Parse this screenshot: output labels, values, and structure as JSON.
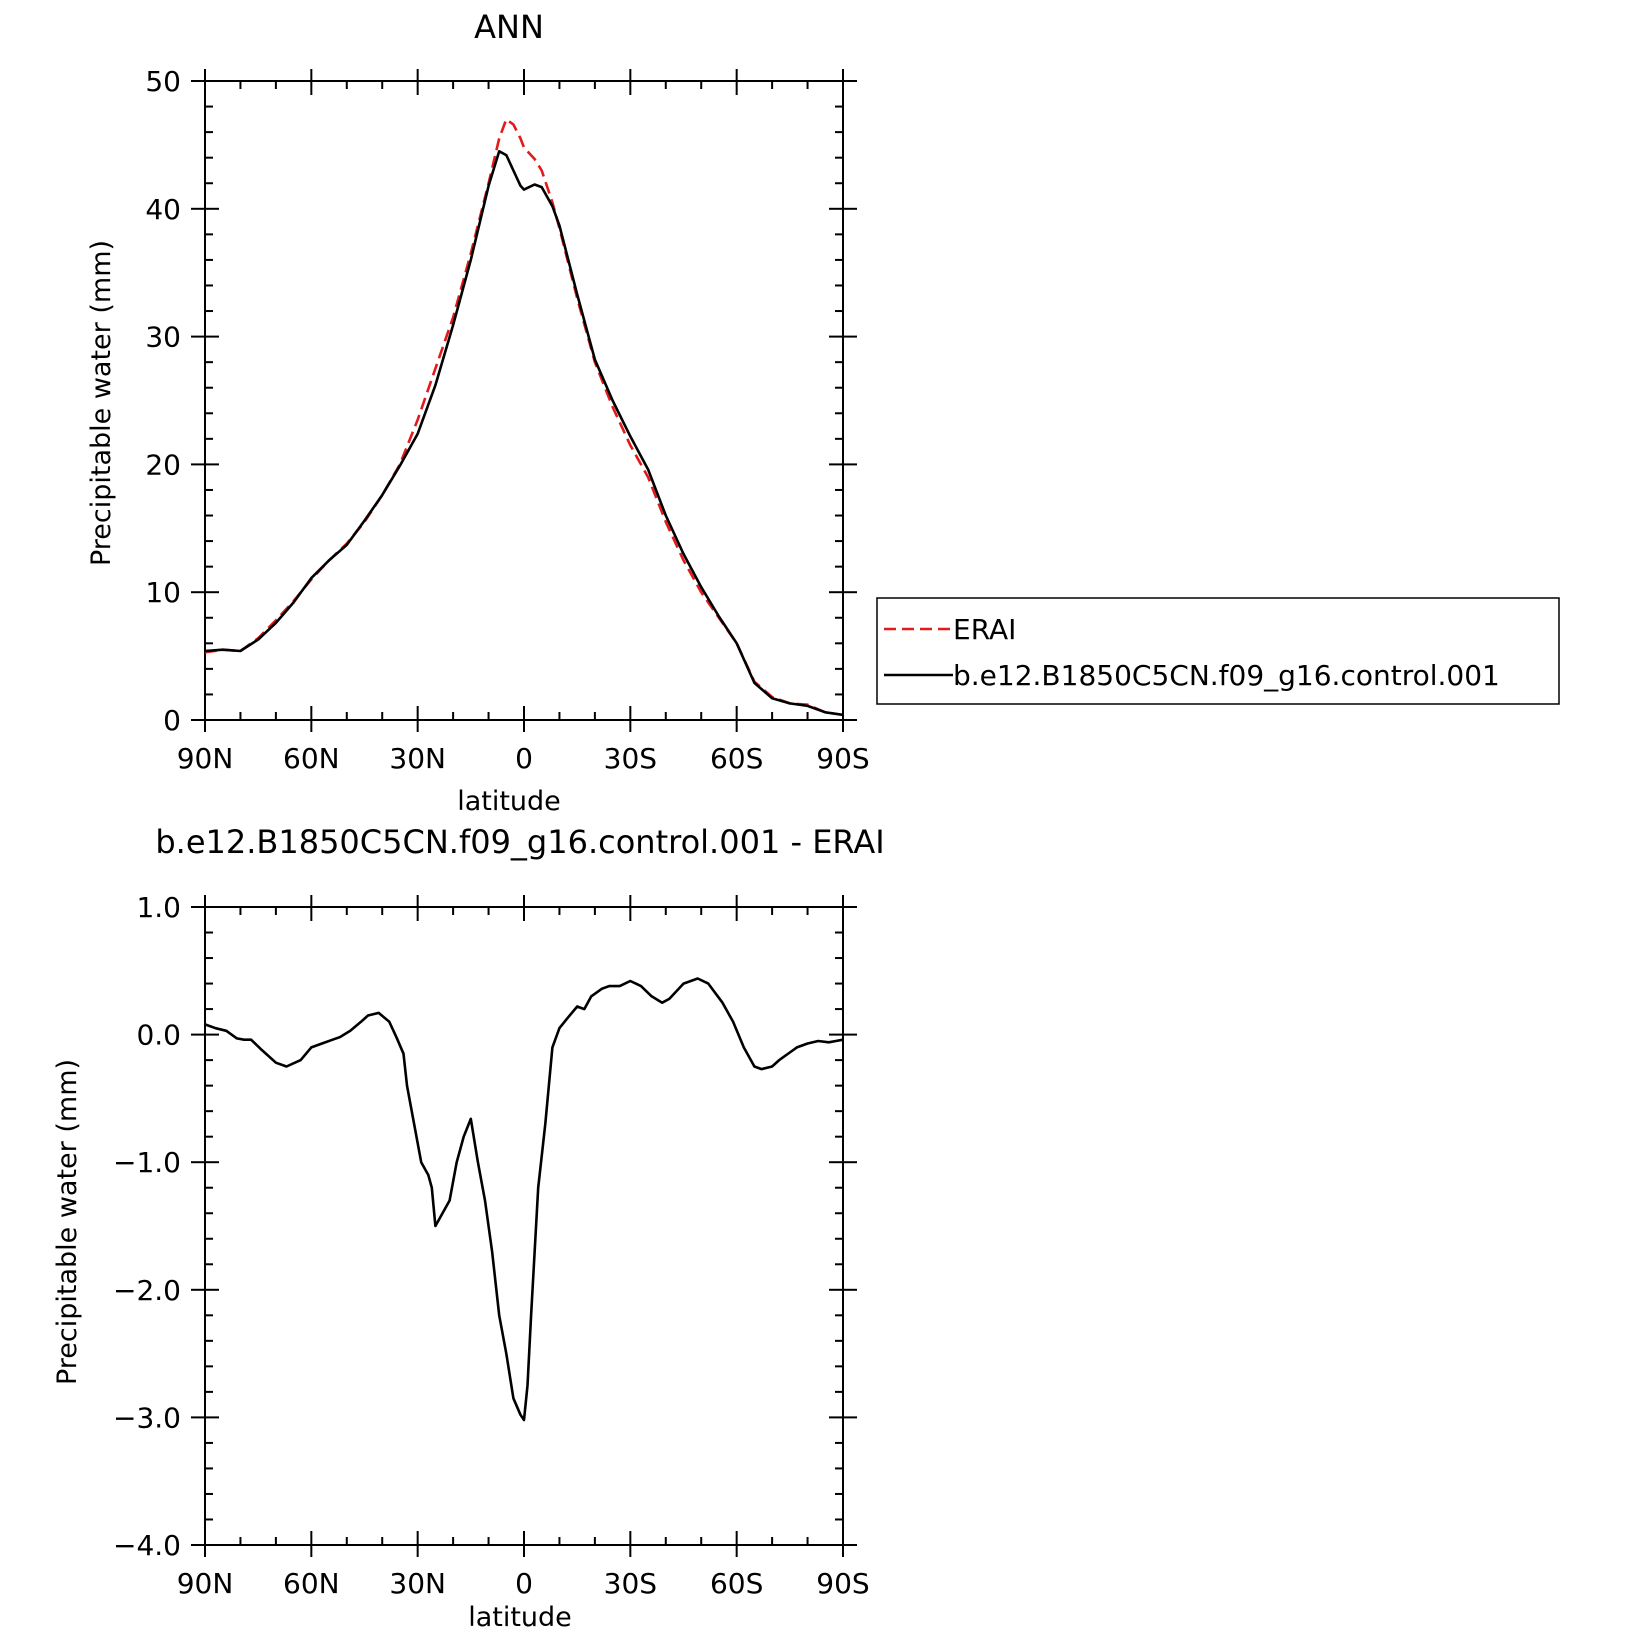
{
  "chart_data": [
    {
      "type": "line",
      "title": "ANN",
      "xlabel": "latitude",
      "ylabel": "Precipitable water (mm)",
      "xlim": [
        90,
        -90
      ],
      "ylim": [
        0,
        50
      ],
      "xticks": [
        90,
        60,
        30,
        0,
        -30,
        -60,
        -90
      ],
      "xtick_labels": [
        "90N",
        "60N",
        "30N",
        "0",
        "30S",
        "60S",
        "90S"
      ],
      "yticks": [
        0,
        10,
        20,
        30,
        40,
        50
      ],
      "ytick_labels": [
        "0",
        "10",
        "20",
        "30",
        "40",
        "50"
      ],
      "grid": false,
      "legend_position": "right",
      "series": [
        {
          "name": "ERAI",
          "color": "#e31a1c",
          "style": "dashed",
          "x": [
            90,
            85,
            80,
            75,
            70,
            65,
            60,
            55,
            50,
            45,
            40,
            35,
            30,
            25,
            20,
            15,
            10,
            7,
            5,
            3,
            1,
            0,
            -3,
            -5,
            -8,
            -10,
            -15,
            -20,
            -25,
            -30,
            -35,
            -40,
            -45,
            -50,
            -55,
            -60,
            -65,
            -70,
            -75,
            -80,
            -85,
            -90
          ],
          "y": [
            5.3,
            5.5,
            5.4,
            6.4,
            7.8,
            9.3,
            11.0,
            12.5,
            13.8,
            15.5,
            17.6,
            20.0,
            23.5,
            27.5,
            31.5,
            36.5,
            42.0,
            45.5,
            47.0,
            46.6,
            45.5,
            44.8,
            43.9,
            43.0,
            40.5,
            38.5,
            33.0,
            28.0,
            24.5,
            21.5,
            19.0,
            15.5,
            12.5,
            10.0,
            8.0,
            6.0,
            3.0,
            1.8,
            1.3,
            1.2,
            0.6,
            0.4
          ]
        },
        {
          "name": "b.e12.B1850C5CN.f09_g16.control.001",
          "color": "#000000",
          "style": "solid",
          "x": [
            90,
            85,
            80,
            75,
            70,
            65,
            60,
            55,
            50,
            45,
            40,
            35,
            30,
            25,
            20,
            15,
            10,
            7,
            5,
            3,
            1,
            0,
            -3,
            -5,
            -8,
            -10,
            -15,
            -20,
            -25,
            -30,
            -35,
            -40,
            -45,
            -50,
            -55,
            -60,
            -65,
            -70,
            -75,
            -80,
            -85,
            -90
          ],
          "y": [
            5.4,
            5.5,
            5.4,
            6.3,
            7.6,
            9.2,
            11.1,
            12.5,
            13.7,
            15.6,
            17.6,
            19.9,
            22.4,
            26.2,
            30.9,
            36.0,
            41.8,
            44.5,
            44.2,
            43.0,
            41.8,
            41.5,
            41.9,
            41.7,
            40.2,
            38.7,
            33.3,
            28.2,
            25.0,
            22.2,
            19.6,
            16.0,
            13.0,
            10.4,
            8.1,
            6.0,
            2.9,
            1.7,
            1.3,
            1.1,
            0.6,
            0.4
          ]
        }
      ]
    },
    {
      "type": "line",
      "title": "b.e12.B1850C5CN.f09_g16.control.001 - ERAI",
      "xlabel": "latitude",
      "ylabel": "Precipitable water (mm)",
      "xlim": [
        90,
        -90
      ],
      "ylim": [
        -4.0,
        1.0
      ],
      "xticks": [
        90,
        60,
        30,
        0,
        -30,
        -60,
        -90
      ],
      "xtick_labels": [
        "90N",
        "60N",
        "30N",
        "0",
        "30S",
        "60S",
        "90S"
      ],
      "yticks": [
        1.0,
        0.0,
        -1.0,
        -2.0,
        -3.0,
        -4.0
      ],
      "ytick_labels": [
        "1.0",
        "0.0",
        "−1.0",
        "−2.0",
        "−3.0",
        "−4.0"
      ],
      "grid": false,
      "series": [
        {
          "color": "#000000",
          "style": "solid",
          "x": [
            90,
            87,
            84,
            81,
            79,
            77,
            74,
            70,
            67,
            63,
            60,
            57,
            54,
            52,
            49,
            46,
            44,
            41,
            38,
            36,
            34,
            33,
            31,
            29,
            27,
            26,
            25,
            23,
            21,
            19,
            17,
            15,
            13,
            11,
            9,
            7,
            5,
            3,
            1,
            0,
            -1,
            -2,
            -4,
            -6,
            -8,
            -10,
            -12,
            -15,
            -17,
            -19,
            -22,
            -24,
            -27,
            -30,
            -33,
            -36,
            -39,
            -41,
            -45,
            -49,
            -52,
            -56,
            -59,
            -62,
            -65,
            -67,
            -70,
            -72,
            -75,
            -77,
            -80,
            -83,
            -86,
            -88,
            -90
          ],
          "y": [
            0.08,
            0.05,
            0.03,
            -0.03,
            -0.04,
            -0.04,
            -0.12,
            -0.22,
            -0.25,
            -0.2,
            -0.1,
            -0.07,
            -0.04,
            -0.02,
            0.03,
            0.1,
            0.15,
            0.17,
            0.1,
            -0.02,
            -0.15,
            -0.4,
            -0.7,
            -1.0,
            -1.1,
            -1.2,
            -1.5,
            -1.4,
            -1.3,
            -1.0,
            -0.8,
            -0.66,
            -1.0,
            -1.3,
            -1.7,
            -2.2,
            -2.5,
            -2.85,
            -2.98,
            -3.02,
            -2.75,
            -2.2,
            -1.2,
            -0.7,
            -0.1,
            0.05,
            0.12,
            0.22,
            0.2,
            0.3,
            0.36,
            0.38,
            0.38,
            0.42,
            0.38,
            0.3,
            0.25,
            0.28,
            0.4,
            0.44,
            0.4,
            0.25,
            0.1,
            -0.1,
            -0.25,
            -0.27,
            -0.25,
            -0.2,
            -0.14,
            -0.1,
            -0.07,
            -0.05,
            -0.06,
            -0.05,
            -0.04
          ]
        }
      ]
    }
  ],
  "legend": {
    "entries": [
      "ERAI",
      "b.e12.B1850C5CN.f09_g16.control.001"
    ]
  }
}
